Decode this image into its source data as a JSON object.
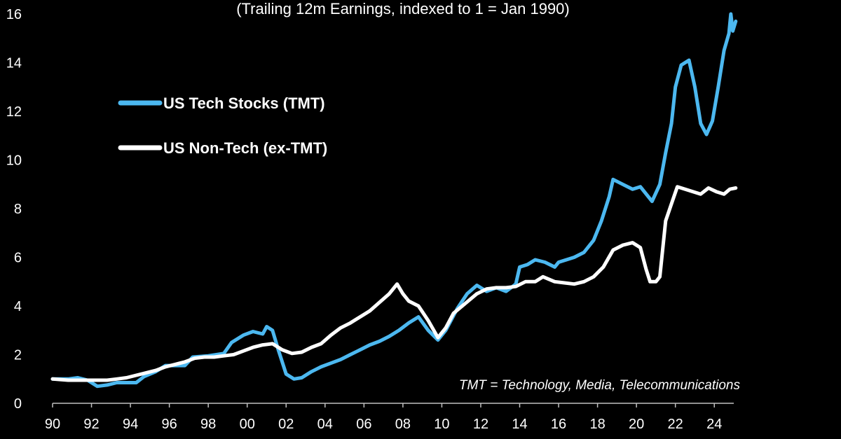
{
  "chart_data": {
    "type": "line",
    "subtitle": "(Trailing 12m Earnings, indexed to 1 = Jan 1990)",
    "ylim": [
      0,
      16
    ],
    "yticks": [
      0,
      2,
      4,
      6,
      8,
      10,
      12,
      14,
      16
    ],
    "xlim": [
      1990,
      2025
    ],
    "xticks": [
      1990,
      1992,
      1994,
      1996,
      1998,
      2000,
      2002,
      2004,
      2006,
      2008,
      2010,
      2012,
      2014,
      2016,
      2018,
      2020,
      2022,
      2024
    ],
    "xtick_labels": [
      "90",
      "92",
      "94",
      "96",
      "98",
      "00",
      "02",
      "04",
      "06",
      "08",
      "10",
      "12",
      "14",
      "16",
      "18",
      "20",
      "22",
      "24"
    ],
    "legend_position": "upper-left",
    "annotation": "TMT = Technology, Media, Telecommunications",
    "series": [
      {
        "name": "US Tech Stocks (TMT)",
        "color": "#4cb8f0",
        "points": [
          [
            1990.0,
            1.0
          ],
          [
            1990.8,
            1.0
          ],
          [
            1991.3,
            1.05
          ],
          [
            1991.8,
            0.95
          ],
          [
            1992.3,
            0.7
          ],
          [
            1992.8,
            0.75
          ],
          [
            1993.3,
            0.85
          ],
          [
            1993.8,
            0.85
          ],
          [
            1994.3,
            0.85
          ],
          [
            1994.7,
            1.1
          ],
          [
            1995.3,
            1.3
          ],
          [
            1995.8,
            1.55
          ],
          [
            1996.3,
            1.55
          ],
          [
            1996.8,
            1.55
          ],
          [
            1997.2,
            1.9
          ],
          [
            1998.0,
            1.95
          ],
          [
            1998.8,
            2.05
          ],
          [
            1999.2,
            2.5
          ],
          [
            1999.8,
            2.8
          ],
          [
            2000.3,
            2.95
          ],
          [
            2000.8,
            2.85
          ],
          [
            2001.0,
            3.15
          ],
          [
            2001.3,
            3.0
          ],
          [
            2001.6,
            2.2
          ],
          [
            2002.0,
            1.2
          ],
          [
            2002.4,
            1.0
          ],
          [
            2002.8,
            1.05
          ],
          [
            2003.3,
            1.3
          ],
          [
            2003.8,
            1.5
          ],
          [
            2004.3,
            1.65
          ],
          [
            2004.8,
            1.8
          ],
          [
            2005.3,
            2.0
          ],
          [
            2005.8,
            2.2
          ],
          [
            2006.3,
            2.4
          ],
          [
            2006.8,
            2.55
          ],
          [
            2007.3,
            2.75
          ],
          [
            2007.8,
            3.0
          ],
          [
            2008.3,
            3.3
          ],
          [
            2008.8,
            3.55
          ],
          [
            2009.3,
            3.0
          ],
          [
            2009.8,
            2.6
          ],
          [
            2010.2,
            3.0
          ],
          [
            2010.8,
            3.9
          ],
          [
            2011.3,
            4.5
          ],
          [
            2011.8,
            4.85
          ],
          [
            2012.3,
            4.6
          ],
          [
            2012.8,
            4.75
          ],
          [
            2013.3,
            4.6
          ],
          [
            2013.8,
            4.9
          ],
          [
            2014.0,
            5.6
          ],
          [
            2014.4,
            5.7
          ],
          [
            2014.8,
            5.9
          ],
          [
            2015.3,
            5.8
          ],
          [
            2015.8,
            5.6
          ],
          [
            2016.0,
            5.8
          ],
          [
            2016.4,
            5.9
          ],
          [
            2016.8,
            6.0
          ],
          [
            2017.3,
            6.2
          ],
          [
            2017.8,
            6.7
          ],
          [
            2018.2,
            7.5
          ],
          [
            2018.6,
            8.5
          ],
          [
            2018.8,
            9.2
          ],
          [
            2019.3,
            9.0
          ],
          [
            2019.8,
            8.8
          ],
          [
            2020.2,
            8.9
          ],
          [
            2020.6,
            8.5
          ],
          [
            2020.8,
            8.3
          ],
          [
            2021.2,
            9.0
          ],
          [
            2021.5,
            10.3
          ],
          [
            2021.8,
            11.5
          ],
          [
            2022.0,
            13.0
          ],
          [
            2022.3,
            13.9
          ],
          [
            2022.7,
            14.1
          ],
          [
            2023.0,
            13.0
          ],
          [
            2023.3,
            11.5
          ],
          [
            2023.6,
            11.05
          ],
          [
            2023.9,
            11.6
          ],
          [
            2024.2,
            13.0
          ],
          [
            2024.5,
            14.5
          ],
          [
            2024.75,
            15.2
          ],
          [
            2024.85,
            16.0
          ],
          [
            2024.95,
            15.3
          ],
          [
            2025.1,
            15.7
          ]
        ]
      },
      {
        "name": "US Non-Tech (ex-TMT)",
        "color": "#ffffff",
        "points": [
          [
            1990.0,
            1.0
          ],
          [
            1990.8,
            0.95
          ],
          [
            1991.5,
            0.95
          ],
          [
            1992.3,
            0.95
          ],
          [
            1992.8,
            0.95
          ],
          [
            1993.3,
            1.0
          ],
          [
            1993.8,
            1.05
          ],
          [
            1994.3,
            1.15
          ],
          [
            1994.8,
            1.25
          ],
          [
            1995.3,
            1.35
          ],
          [
            1995.8,
            1.5
          ],
          [
            1996.3,
            1.6
          ],
          [
            1996.8,
            1.7
          ],
          [
            1997.3,
            1.85
          ],
          [
            1997.8,
            1.9
          ],
          [
            1998.3,
            1.9
          ],
          [
            1998.8,
            1.95
          ],
          [
            1999.3,
            2.0
          ],
          [
            1999.8,
            2.15
          ],
          [
            2000.3,
            2.3
          ],
          [
            2000.8,
            2.4
          ],
          [
            2001.3,
            2.45
          ],
          [
            2001.8,
            2.2
          ],
          [
            2002.3,
            2.05
          ],
          [
            2002.8,
            2.1
          ],
          [
            2003.3,
            2.3
          ],
          [
            2003.8,
            2.45
          ],
          [
            2004.3,
            2.8
          ],
          [
            2004.8,
            3.1
          ],
          [
            2005.3,
            3.3
          ],
          [
            2005.8,
            3.55
          ],
          [
            2006.3,
            3.8
          ],
          [
            2006.8,
            4.15
          ],
          [
            2007.3,
            4.5
          ],
          [
            2007.7,
            4.9
          ],
          [
            2008.0,
            4.5
          ],
          [
            2008.3,
            4.2
          ],
          [
            2008.8,
            4.0
          ],
          [
            2009.3,
            3.4
          ],
          [
            2009.8,
            2.7
          ],
          [
            2010.2,
            3.1
          ],
          [
            2010.6,
            3.7
          ],
          [
            2011.2,
            4.1
          ],
          [
            2011.8,
            4.5
          ],
          [
            2012.3,
            4.7
          ],
          [
            2012.8,
            4.75
          ],
          [
            2013.3,
            4.75
          ],
          [
            2013.8,
            4.8
          ],
          [
            2014.3,
            5.0
          ],
          [
            2014.8,
            5.0
          ],
          [
            2015.2,
            5.2
          ],
          [
            2015.8,
            5.0
          ],
          [
            2016.3,
            4.95
          ],
          [
            2016.8,
            4.9
          ],
          [
            2017.3,
            5.0
          ],
          [
            2017.8,
            5.2
          ],
          [
            2018.3,
            5.6
          ],
          [
            2018.8,
            6.3
          ],
          [
            2019.3,
            6.5
          ],
          [
            2019.8,
            6.6
          ],
          [
            2020.2,
            6.4
          ],
          [
            2020.5,
            5.5
          ],
          [
            2020.7,
            5.0
          ],
          [
            2021.0,
            5.0
          ],
          [
            2021.2,
            5.2
          ],
          [
            2021.5,
            7.5
          ],
          [
            2021.8,
            8.2
          ],
          [
            2022.1,
            8.9
          ],
          [
            2022.5,
            8.8
          ],
          [
            2022.9,
            8.7
          ],
          [
            2023.3,
            8.6
          ],
          [
            2023.7,
            8.85
          ],
          [
            2024.1,
            8.7
          ],
          [
            2024.5,
            8.6
          ],
          [
            2024.8,
            8.8
          ],
          [
            2025.1,
            8.85
          ]
        ]
      }
    ]
  }
}
